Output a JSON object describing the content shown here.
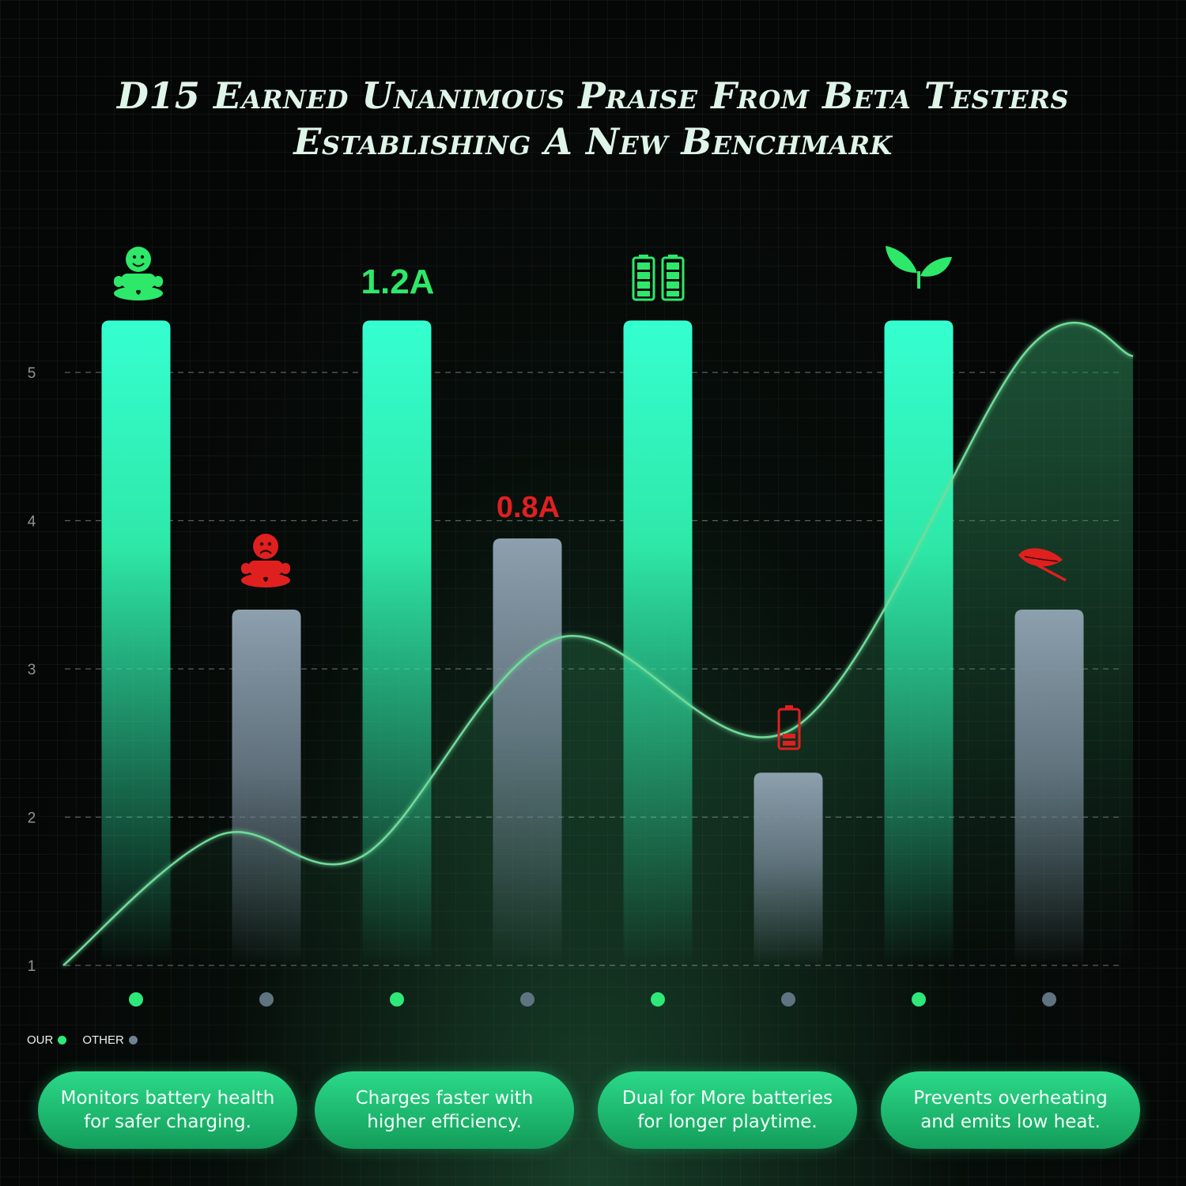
{
  "title": {
    "line1": "D15 Earned Unanimous Praise From Beta Testers",
    "line2": "Establishing A New Benchmark"
  },
  "colors": {
    "our": "#2ee8a8",
    "other": "#7a8e9c",
    "accent_red": "#e0201f",
    "curve": "#6fdc9a"
  },
  "legend": {
    "our_label": "OUR",
    "other_label": "OTHER"
  },
  "annotations": {
    "our_current": "1.2A",
    "other_current": "0.8A"
  },
  "icons": [
    {
      "name": "happy-baby-icon",
      "bar": 0,
      "color": "#2ee86a"
    },
    {
      "name": "sad-baby-icon",
      "bar": 1,
      "color": "#e0201f"
    },
    {
      "name": "dual-battery-icon",
      "bar": 4,
      "color": "#2ee86a"
    },
    {
      "name": "low-battery-icon",
      "bar": 5,
      "color": "#e0201f"
    },
    {
      "name": "green-leaves-icon",
      "bar": 6,
      "color": "#2ee86a"
    },
    {
      "name": "red-leaf-icon",
      "bar": 7,
      "color": "#e0201f"
    }
  ],
  "features": [
    {
      "line1": "Monitors battery health",
      "line2": "for safer charging."
    },
    {
      "line1": "Charges faster with",
      "line2": "higher efficiency."
    },
    {
      "line1": "Dual for More batteries",
      "line2": "for longer playtime."
    },
    {
      "line1": "Prevents overheating",
      "line2": "and emits low heat."
    }
  ],
  "chart_data": {
    "type": "bar",
    "y_ticks": [
      1,
      2,
      3,
      4,
      5
    ],
    "ylim": [
      1,
      5.35
    ],
    "grid": "dashed horizontal",
    "legend_position": "bottom-left",
    "bars": [
      {
        "series": "OUR",
        "value": 5.35
      },
      {
        "series": "OTHER",
        "value": 3.4
      },
      {
        "series": "OUR",
        "value": 5.35
      },
      {
        "series": "OTHER",
        "value": 3.88
      },
      {
        "series": "OUR",
        "value": 5.35
      },
      {
        "series": "OTHER",
        "value": 2.3
      },
      {
        "series": "OUR",
        "value": 5.35
      },
      {
        "series": "OTHER",
        "value": 3.4
      }
    ],
    "curve": [
      {
        "x": 0,
        "y": 1.0
      },
      {
        "x": 1.2,
        "y": 1.88
      },
      {
        "x": 2.3,
        "y": 1.74
      },
      {
        "x": 3.8,
        "y": 3.21
      },
      {
        "x": 5.6,
        "y": 2.6
      },
      {
        "x": 7.4,
        "y": 5.16
      },
      {
        "x": 8.2,
        "y": 5.11
      }
    ]
  }
}
